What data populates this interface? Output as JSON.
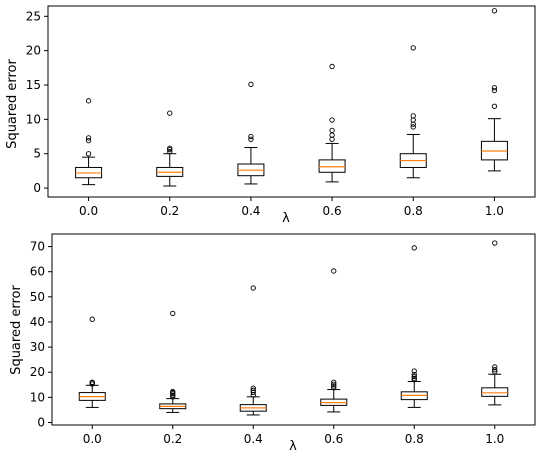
{
  "chart_data": [
    {
      "type": "box",
      "xlabel": "λ",
      "ylabel": "Squared error",
      "categories": [
        "0.0",
        "0.2",
        "0.4",
        "0.6",
        "0.8",
        "1.0"
      ],
      "yticks": [
        0,
        5,
        10,
        15,
        20,
        25
      ],
      "ylim": [
        -1.3,
        26.5
      ],
      "grid": false,
      "boxes": [
        {
          "whislo": 0.5,
          "q1": 1.5,
          "med": 2.2,
          "q3": 3.0,
          "whishi": 4.5,
          "fliers": [
            5.0,
            6.9,
            7.3,
            12.7
          ]
        },
        {
          "whislo": 0.3,
          "q1": 1.7,
          "med": 2.3,
          "q3": 3.0,
          "whishi": 5.0,
          "fliers": [
            5.3,
            5.6,
            5.8,
            10.9
          ]
        },
        {
          "whislo": 0.6,
          "q1": 1.8,
          "med": 2.6,
          "q3": 3.5,
          "whishi": 5.9,
          "fliers": [
            7.1,
            7.5,
            15.1
          ]
        },
        {
          "whislo": 0.9,
          "q1": 2.3,
          "med": 3.1,
          "q3": 4.1,
          "whishi": 6.5,
          "fliers": [
            7.1,
            7.7,
            8.4,
            9.9,
            17.7
          ]
        },
        {
          "whislo": 1.5,
          "q1": 3.0,
          "med": 4.0,
          "q3": 5.0,
          "whishi": 7.8,
          "fliers": [
            8.9,
            9.3,
            9.9,
            10.5,
            20.4
          ]
        },
        {
          "whislo": 2.5,
          "q1": 4.1,
          "med": 5.4,
          "q3": 6.8,
          "whishi": 10.1,
          "fliers": [
            11.9,
            14.2,
            14.6,
            25.8
          ]
        }
      ]
    },
    {
      "type": "box",
      "xlabel": "λ",
      "ylabel": "Squared error",
      "categories": [
        "0.0",
        "0.2",
        "0.4",
        "0.6",
        "0.8",
        "1.0"
      ],
      "yticks": [
        0,
        10,
        20,
        30,
        40,
        50,
        60,
        70
      ],
      "ylim": [
        -1,
        75
      ],
      "grid": false,
      "boxes": [
        {
          "whislo": 6.0,
          "q1": 8.8,
          "med": 10.3,
          "q3": 11.9,
          "whishi": 14.8,
          "fliers": [
            15.3,
            15.8,
            16.0,
            41.1
          ]
        },
        {
          "whislo": 4.0,
          "q1": 5.5,
          "med": 6.4,
          "q3": 7.4,
          "whishi": 9.5,
          "fliers": [
            10.2,
            10.8,
            11.4,
            11.9,
            12.3,
            43.4
          ]
        },
        {
          "whislo": 3.0,
          "q1": 4.5,
          "med": 5.8,
          "q3": 7.1,
          "whishi": 10.2,
          "fliers": [
            11.0,
            12.0,
            12.8,
            13.6,
            53.5
          ]
        },
        {
          "whislo": 4.2,
          "q1": 6.8,
          "med": 7.9,
          "q3": 9.3,
          "whishi": 13.1,
          "fliers": [
            13.8,
            14.5,
            15.2,
            16.0,
            60.3
          ]
        },
        {
          "whislo": 6.0,
          "q1": 9.1,
          "med": 10.8,
          "q3": 12.2,
          "whishi": 16.3,
          "fliers": [
            17.0,
            17.6,
            18.3,
            19.1,
            20.5,
            69.5
          ]
        },
        {
          "whislo": 7.0,
          "q1": 10.4,
          "med": 11.8,
          "q3": 13.8,
          "whishi": 19.2,
          "fliers": [
            20.2,
            21.0,
            22.1,
            71.4
          ]
        }
      ]
    }
  ]
}
